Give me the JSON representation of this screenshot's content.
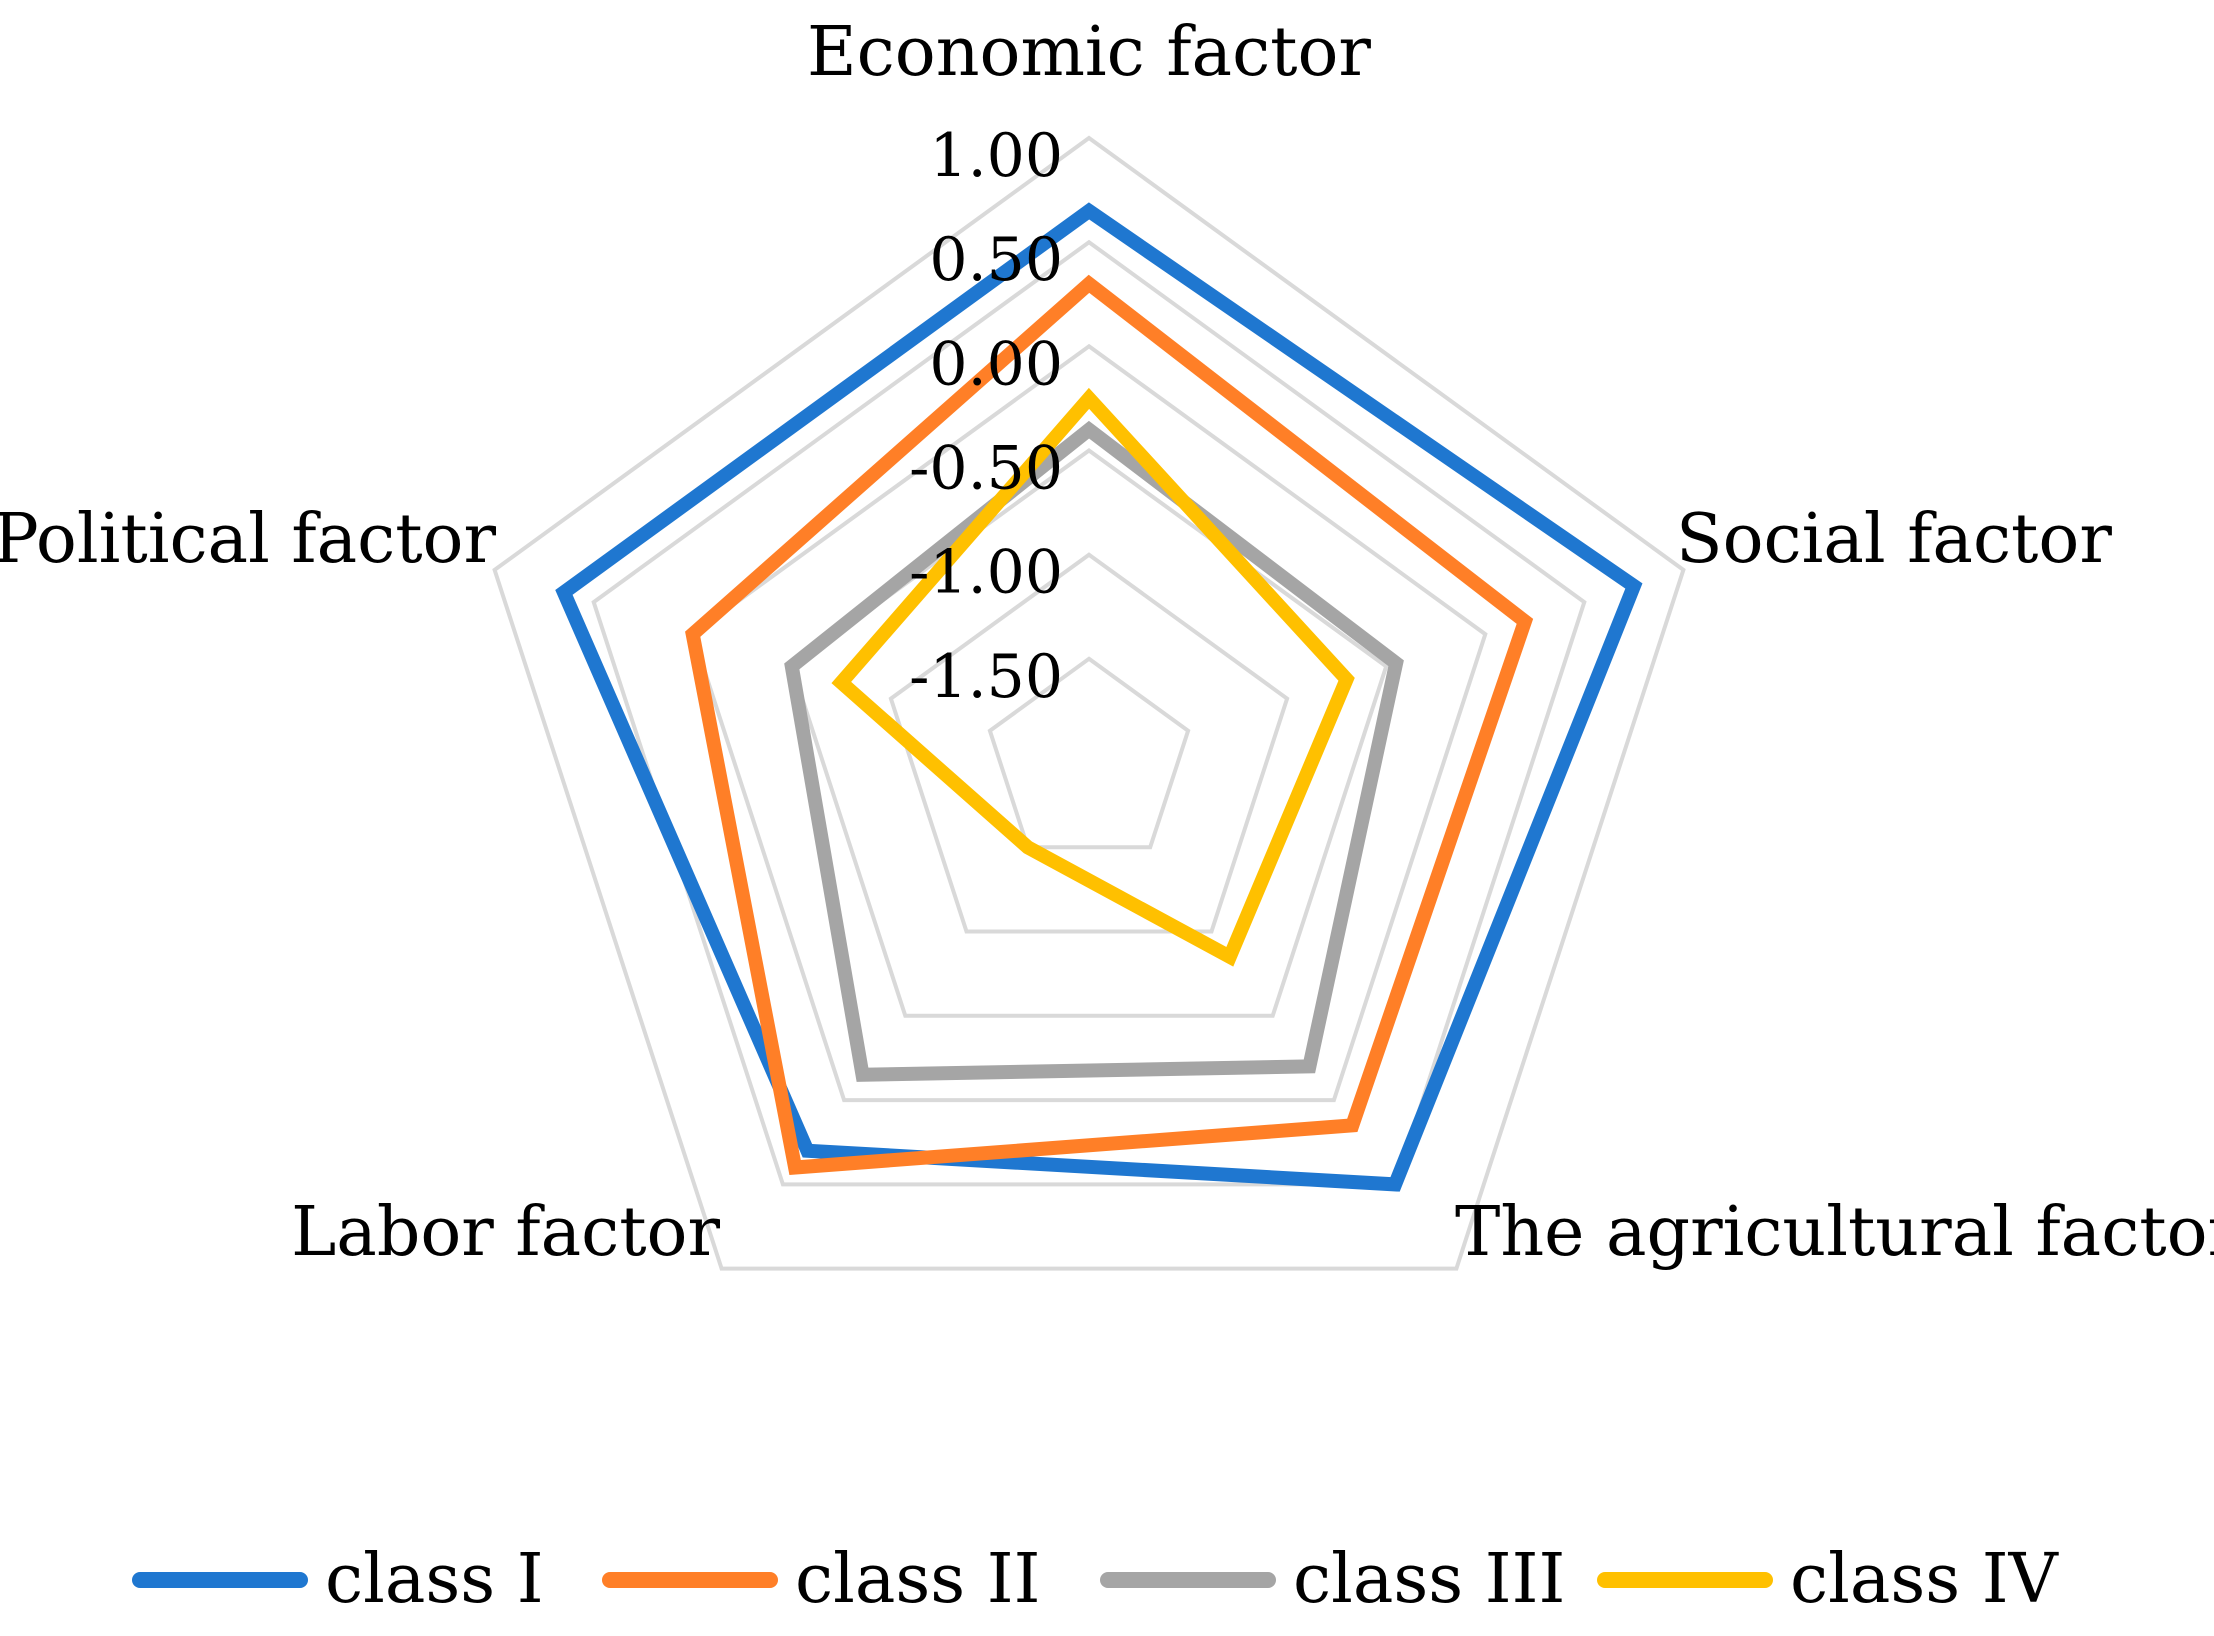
{
  "chart_data": {
    "type": "radar",
    "title": "",
    "axes": [
      "Economic factor",
      "Social factor",
      "The agricultural factor",
      "Labor factor",
      "Political factor"
    ],
    "radial_range": [
      -2.0,
      1.0
    ],
    "radial_ticks": [
      1.0,
      0.5,
      0.0,
      -0.5,
      -1.0,
      -1.5
    ],
    "radial_tick_labels": [
      "1.00",
      "0.50",
      "0.00",
      "-0.50",
      "-1.00",
      "-1.50"
    ],
    "grid": true,
    "legend_position": "bottom",
    "series": [
      {
        "name": "class I",
        "color": "#1f77d0",
        "values": [
          0.65,
          0.75,
          0.5,
          0.3,
          0.65
        ]
      },
      {
        "name": "class II",
        "color": "#ff7f27",
        "values": [
          0.3,
          0.2,
          0.15,
          0.4,
          0.0
        ]
      },
      {
        "name": "class III",
        "color": "#a5a5a5",
        "values": [
          -0.4,
          -0.45,
          -0.2,
          -0.15,
          -0.5
        ]
      },
      {
        "name": "class IV",
        "color": "#ffc000",
        "values": [
          -0.25,
          -0.7,
          -0.85,
          -1.5,
          -0.75
        ]
      }
    ],
    "gridline_color": "#d9d9d9"
  }
}
